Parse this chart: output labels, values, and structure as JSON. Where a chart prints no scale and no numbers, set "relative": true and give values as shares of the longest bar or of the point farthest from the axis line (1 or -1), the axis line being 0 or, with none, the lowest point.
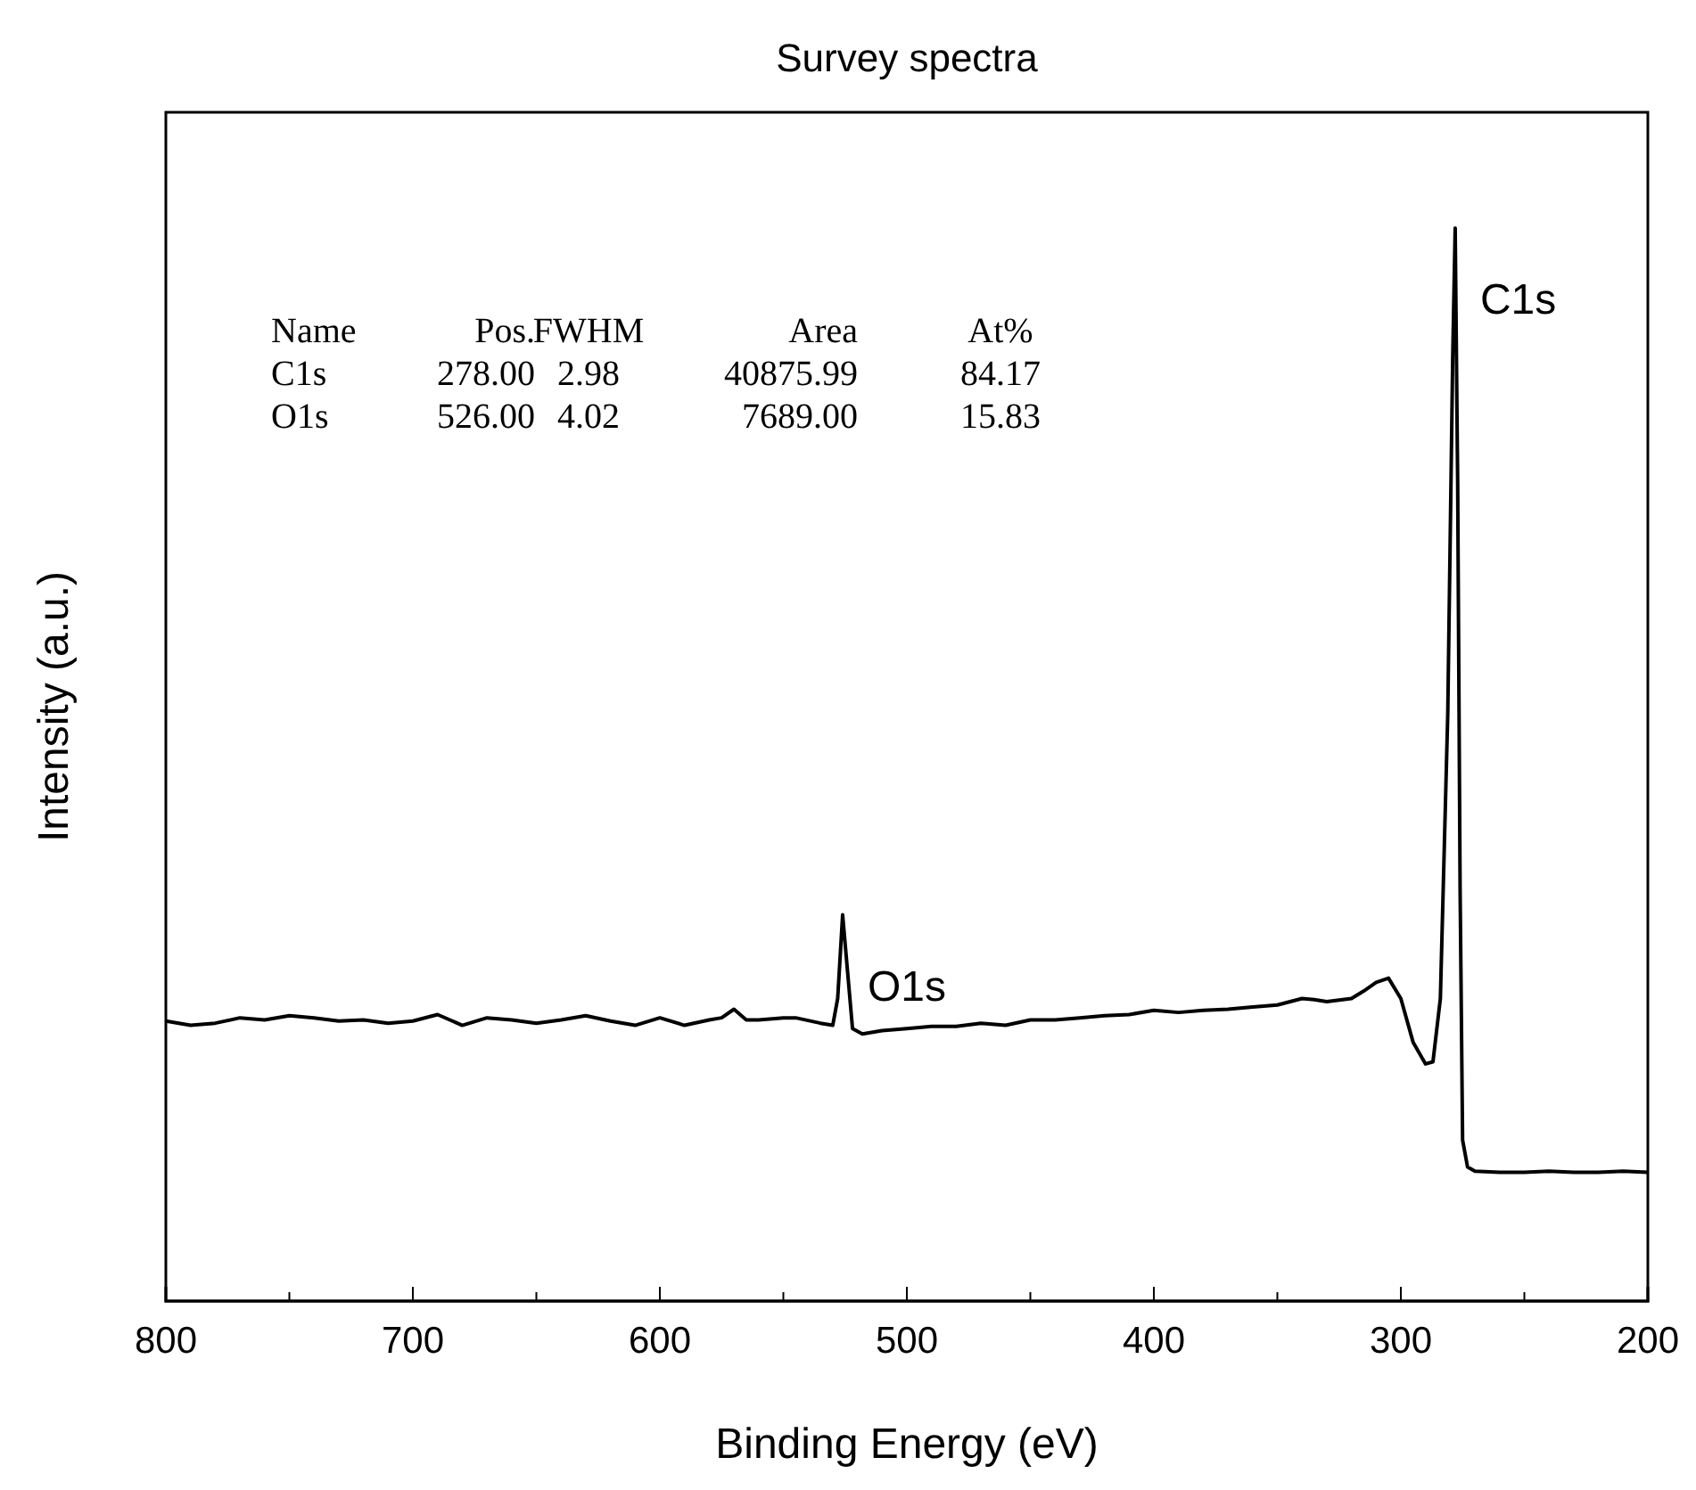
{
  "chart_data": {
    "type": "line",
    "title": "Survey spectra",
    "xlabel": "Binding Energy (eV)",
    "ylabel": "Intensity (a.u.)",
    "relative": true,
    "x": [
      800,
      790,
      780,
      770,
      760,
      750,
      740,
      730,
      720,
      710,
      700,
      690,
      680,
      670,
      660,
      650,
      640,
      630,
      620,
      610,
      600,
      590,
      580,
      575,
      570,
      565,
      560,
      550,
      545,
      535,
      530,
      528,
      526,
      524,
      522,
      518,
      510,
      500,
      490,
      480,
      470,
      460,
      450,
      440,
      430,
      420,
      410,
      400,
      390,
      380,
      370,
      360,
      350,
      340,
      335,
      330,
      320,
      315,
      310,
      305,
      300,
      295,
      290,
      287,
      284,
      281,
      279,
      278,
      277,
      276,
      275,
      273,
      270,
      260,
      250,
      240,
      230,
      220,
      210,
      200
    ],
    "series": [
      {
        "color": "#000000",
        "values": [
          0.261,
          0.257,
          0.259,
          0.264,
          0.262,
          0.266,
          0.264,
          0.261,
          0.262,
          0.259,
          0.261,
          0.267,
          0.257,
          0.264,
          0.262,
          0.259,
          0.262,
          0.266,
          0.261,
          0.257,
          0.264,
          0.257,
          0.262,
          0.264,
          0.272,
          0.262,
          0.262,
          0.264,
          0.264,
          0.259,
          0.257,
          0.282,
          0.36,
          0.307,
          0.254,
          0.249,
          0.252,
          0.254,
          0.256,
          0.256,
          0.259,
          0.257,
          0.262,
          0.262,
          0.264,
          0.266,
          0.267,
          0.271,
          0.269,
          0.271,
          0.272,
          0.274,
          0.276,
          0.282,
          0.281,
          0.279,
          0.282,
          0.289,
          0.297,
          0.301,
          0.282,
          0.241,
          0.221,
          0.223,
          0.282,
          0.548,
          0.88,
          1,
          0.764,
          0.382,
          0.15,
          0.125,
          0.121,
          0.12,
          0.12,
          0.121,
          0.12,
          0.12,
          0.121,
          0.12
        ]
      }
    ],
    "xlim": [
      800,
      200
    ],
    "xticks": [
      800,
      {
        "value": 750,
        "label": null
      },
      700,
      {
        "value": 650,
        "label": null
      },
      600,
      {
        "value": 550,
        "label": null
      },
      500,
      {
        "value": 450,
        "label": null
      },
      400,
      {
        "value": 350,
        "label": null
      },
      300,
      {
        "value": 250,
        "label": null
      },
      200
    ],
    "annotations": [
      {
        "text": "C1s",
        "x": 278,
        "y": 1
      },
      {
        "text": "O1s",
        "x": 526,
        "y": 0.36
      },
      "Name",
      "Pos.",
      "FWHM",
      "Area",
      "At%",
      "C1s",
      "278.00",
      "2.98",
      "40875.99",
      "84.17",
      "O1s",
      "526.00",
      "4.02",
      "7689.00",
      "15.83"
    ],
    "grid": false,
    "marker": "none",
    "line_style": "solid"
  }
}
